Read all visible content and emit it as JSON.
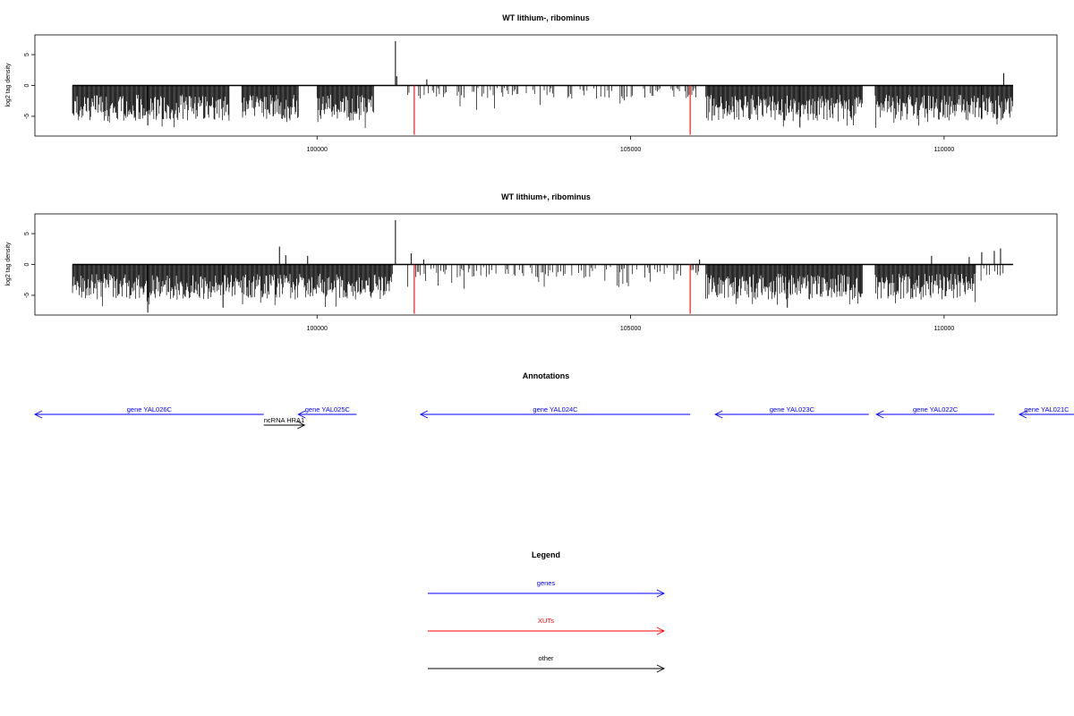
{
  "colors": {
    "gene": "#0000ff",
    "xut": "#ff0000",
    "other": "#000000",
    "bars": "#000000"
  },
  "axis": {
    "x_ticks": [
      100000,
      105000,
      110000
    ],
    "x_tick_labels": [
      "100000",
      "105000",
      "110000"
    ],
    "y_ticks": [
      5,
      0,
      -5
    ],
    "y_tick_labels": [
      "5",
      "0",
      "-5"
    ],
    "xlim": [
      95500,
      111800
    ],
    "ylim": [
      -8.2,
      8.2
    ],
    "ylabel": "log2 tag density"
  },
  "chart_data": [
    {
      "type": "bar",
      "title": "WT lithium-, ribominus",
      "ylabel": "log2 tag density",
      "xlim": [
        95500,
        111800
      ],
      "ylim": [
        -8.2,
        8.2
      ],
      "grid": false,
      "data_range": [
        96100,
        111100
      ],
      "dense_blocks": [
        [
          96100,
          98600
        ],
        [
          98800,
          99700
        ],
        [
          100000,
          100900
        ],
        [
          106200,
          108700
        ],
        [
          108900,
          111100
        ]
      ],
      "sparse_blocks": [
        [
          101400,
          106100
        ]
      ],
      "peaks": [
        {
          "x": 101250,
          "y": 7.2
        },
        {
          "x": 101270,
          "y": 1.5
        },
        {
          "x": 101750,
          "y": 1.0
        },
        {
          "x": 110950,
          "y": 2.0
        },
        {
          "x": 97300,
          "y": -6.5
        },
        {
          "x": 99300,
          "y": -5.0
        },
        {
          "x": 107700,
          "y": -6.8
        },
        {
          "x": 110600,
          "y": -5.5
        }
      ],
      "xut_marks": [
        {
          "x": 101550,
          "y": -8.0
        },
        {
          "x": 105950,
          "y": -8.0
        }
      ]
    },
    {
      "type": "bar",
      "title": "WT lithium+, ribominus",
      "ylabel": "log2 tag density",
      "xlim": [
        95500,
        111800
      ],
      "ylim": [
        -8.2,
        8.2
      ],
      "grid": false,
      "data_range": [
        96100,
        111100
      ],
      "dense_blocks": [
        [
          96100,
          100000
        ],
        [
          100000,
          101200
        ],
        [
          106200,
          108700
        ],
        [
          108900,
          110500
        ]
      ],
      "sparse_blocks": [
        [
          101400,
          106100
        ],
        [
          110500,
          111100
        ]
      ],
      "peaks": [
        {
          "x": 101250,
          "y": 7.2
        },
        {
          "x": 99400,
          "y": 2.9
        },
        {
          "x": 99500,
          "y": 1.5
        },
        {
          "x": 99850,
          "y": 1.4
        },
        {
          "x": 101500,
          "y": 1.8
        },
        {
          "x": 101700,
          "y": 0.8
        },
        {
          "x": 106100,
          "y": 0.8
        },
        {
          "x": 109800,
          "y": 1.4
        },
        {
          "x": 110400,
          "y": 1.2
        },
        {
          "x": 110600,
          "y": 2.0
        },
        {
          "x": 110800,
          "y": 2.2
        },
        {
          "x": 110900,
          "y": 2.6
        },
        {
          "x": 97300,
          "y": -7.8
        },
        {
          "x": 98500,
          "y": -7.0
        },
        {
          "x": 107500,
          "y": -7.0
        }
      ],
      "xut_marks": [
        {
          "x": 101550,
          "y": -8.0
        },
        {
          "x": 105950,
          "y": -8.0
        }
      ]
    }
  ],
  "annotations": {
    "title": "Annotations",
    "features": [
      {
        "label": "gene YAL026C",
        "kind": "gene",
        "start": 95500,
        "end": 99150,
        "strand": "-",
        "row": 0
      },
      {
        "label": "ncRNA HRA1",
        "kind": "other",
        "start": 99150,
        "end": 99800,
        "strand": "+",
        "row": 1
      },
      {
        "label": "gene YAL025C",
        "kind": "gene",
        "start": 99700,
        "end": 100630,
        "strand": "-",
        "row": 0
      },
      {
        "label": "gene YAL024C",
        "kind": "gene",
        "start": 101650,
        "end": 105950,
        "strand": "-",
        "row": 0
      },
      {
        "label": "gene YAL023C",
        "kind": "gene",
        "start": 106350,
        "end": 108800,
        "strand": "-",
        "row": 0
      },
      {
        "label": "gene YAL022C",
        "kind": "gene",
        "start": 108920,
        "end": 110800,
        "strand": "-",
        "row": 0
      },
      {
        "label": "gene YAL021C",
        "kind": "gene",
        "start": 111200,
        "end": 113800,
        "strand": "-",
        "row": 0
      }
    ]
  },
  "legend": {
    "title": "Legend",
    "items": [
      {
        "label": "genes",
        "kind": "gene"
      },
      {
        "label": "XUTs",
        "kind": "xut"
      },
      {
        "label": "other",
        "kind": "other"
      }
    ]
  }
}
